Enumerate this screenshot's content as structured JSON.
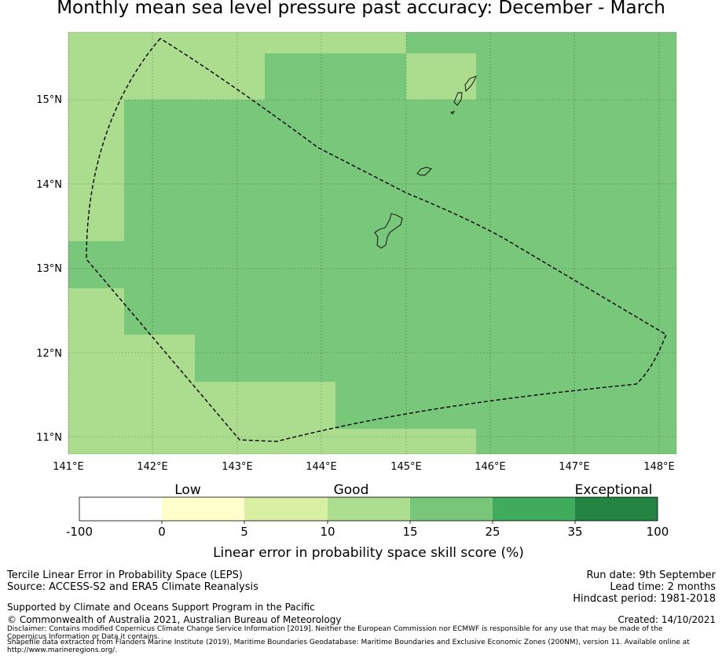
{
  "title": "Monthly mean sea level pressure past accuracy: December - March",
  "map": {
    "lon_ticks": [
      "141°E",
      "142°E",
      "143°E",
      "144°E",
      "145°E",
      "146°E",
      "147°E",
      "148°E"
    ],
    "lat_ticks": [
      "15°N",
      "14°N",
      "13°N",
      "12°N",
      "11°N"
    ],
    "extent": {
      "lon_min": 141.0,
      "lon_max": 148.2,
      "lat_min": 10.8,
      "lat_max": 15.8
    },
    "cell_colors": {
      "light": "#acdd8e",
      "mid": "#79c77a"
    }
  },
  "colorbar": {
    "category_labels": [
      "Low",
      "Good",
      "Exceptional"
    ],
    "tick_labels": [
      "-100",
      "0",
      "5",
      "10",
      "15",
      "25",
      "35",
      "100"
    ],
    "colors": [
      "#ffffff",
      "#ffffcc",
      "#d9f0a3",
      "#addd8e",
      "#78c679",
      "#41ab5d",
      "#238443"
    ],
    "label": "Linear error in probability space skill score (%)"
  },
  "footer": {
    "left_line1": "Tercile Linear Error in Probability Space (LEPS)",
    "left_line2": "Source: ACCESS-S2 and ERA5 Climate Reanalysis",
    "right_line1": "Run date: 9th September",
    "right_line2": "Lead time: 2 months",
    "right_line3": "Hindcast period: 1981-2018",
    "supported": "Supported by Climate and Oceans Support Program in the Pacific",
    "copyright": "© Commonwealth of Australia 2021, Australian Bureau of Meteorology",
    "created": "Created: 14/10/2021",
    "disclaimer1": "Disclaimer: Contains modified Copernicus Climate Change Service Information [2019]. Neither the European Commission nor ECMWF is responsible for any use that may be made of the",
    "disclaimer2": "Copernicus Information or Data it contains.",
    "shapefile1": "Shapefile data extracted from Flanders Marine Institute (2019), Maritime Boundaries Geodatabase: Maritime Boundaries and Exclusive Economic Zones (200NM), version 11. Available online at",
    "shapefile2": "http://www.marineregions.org/."
  }
}
